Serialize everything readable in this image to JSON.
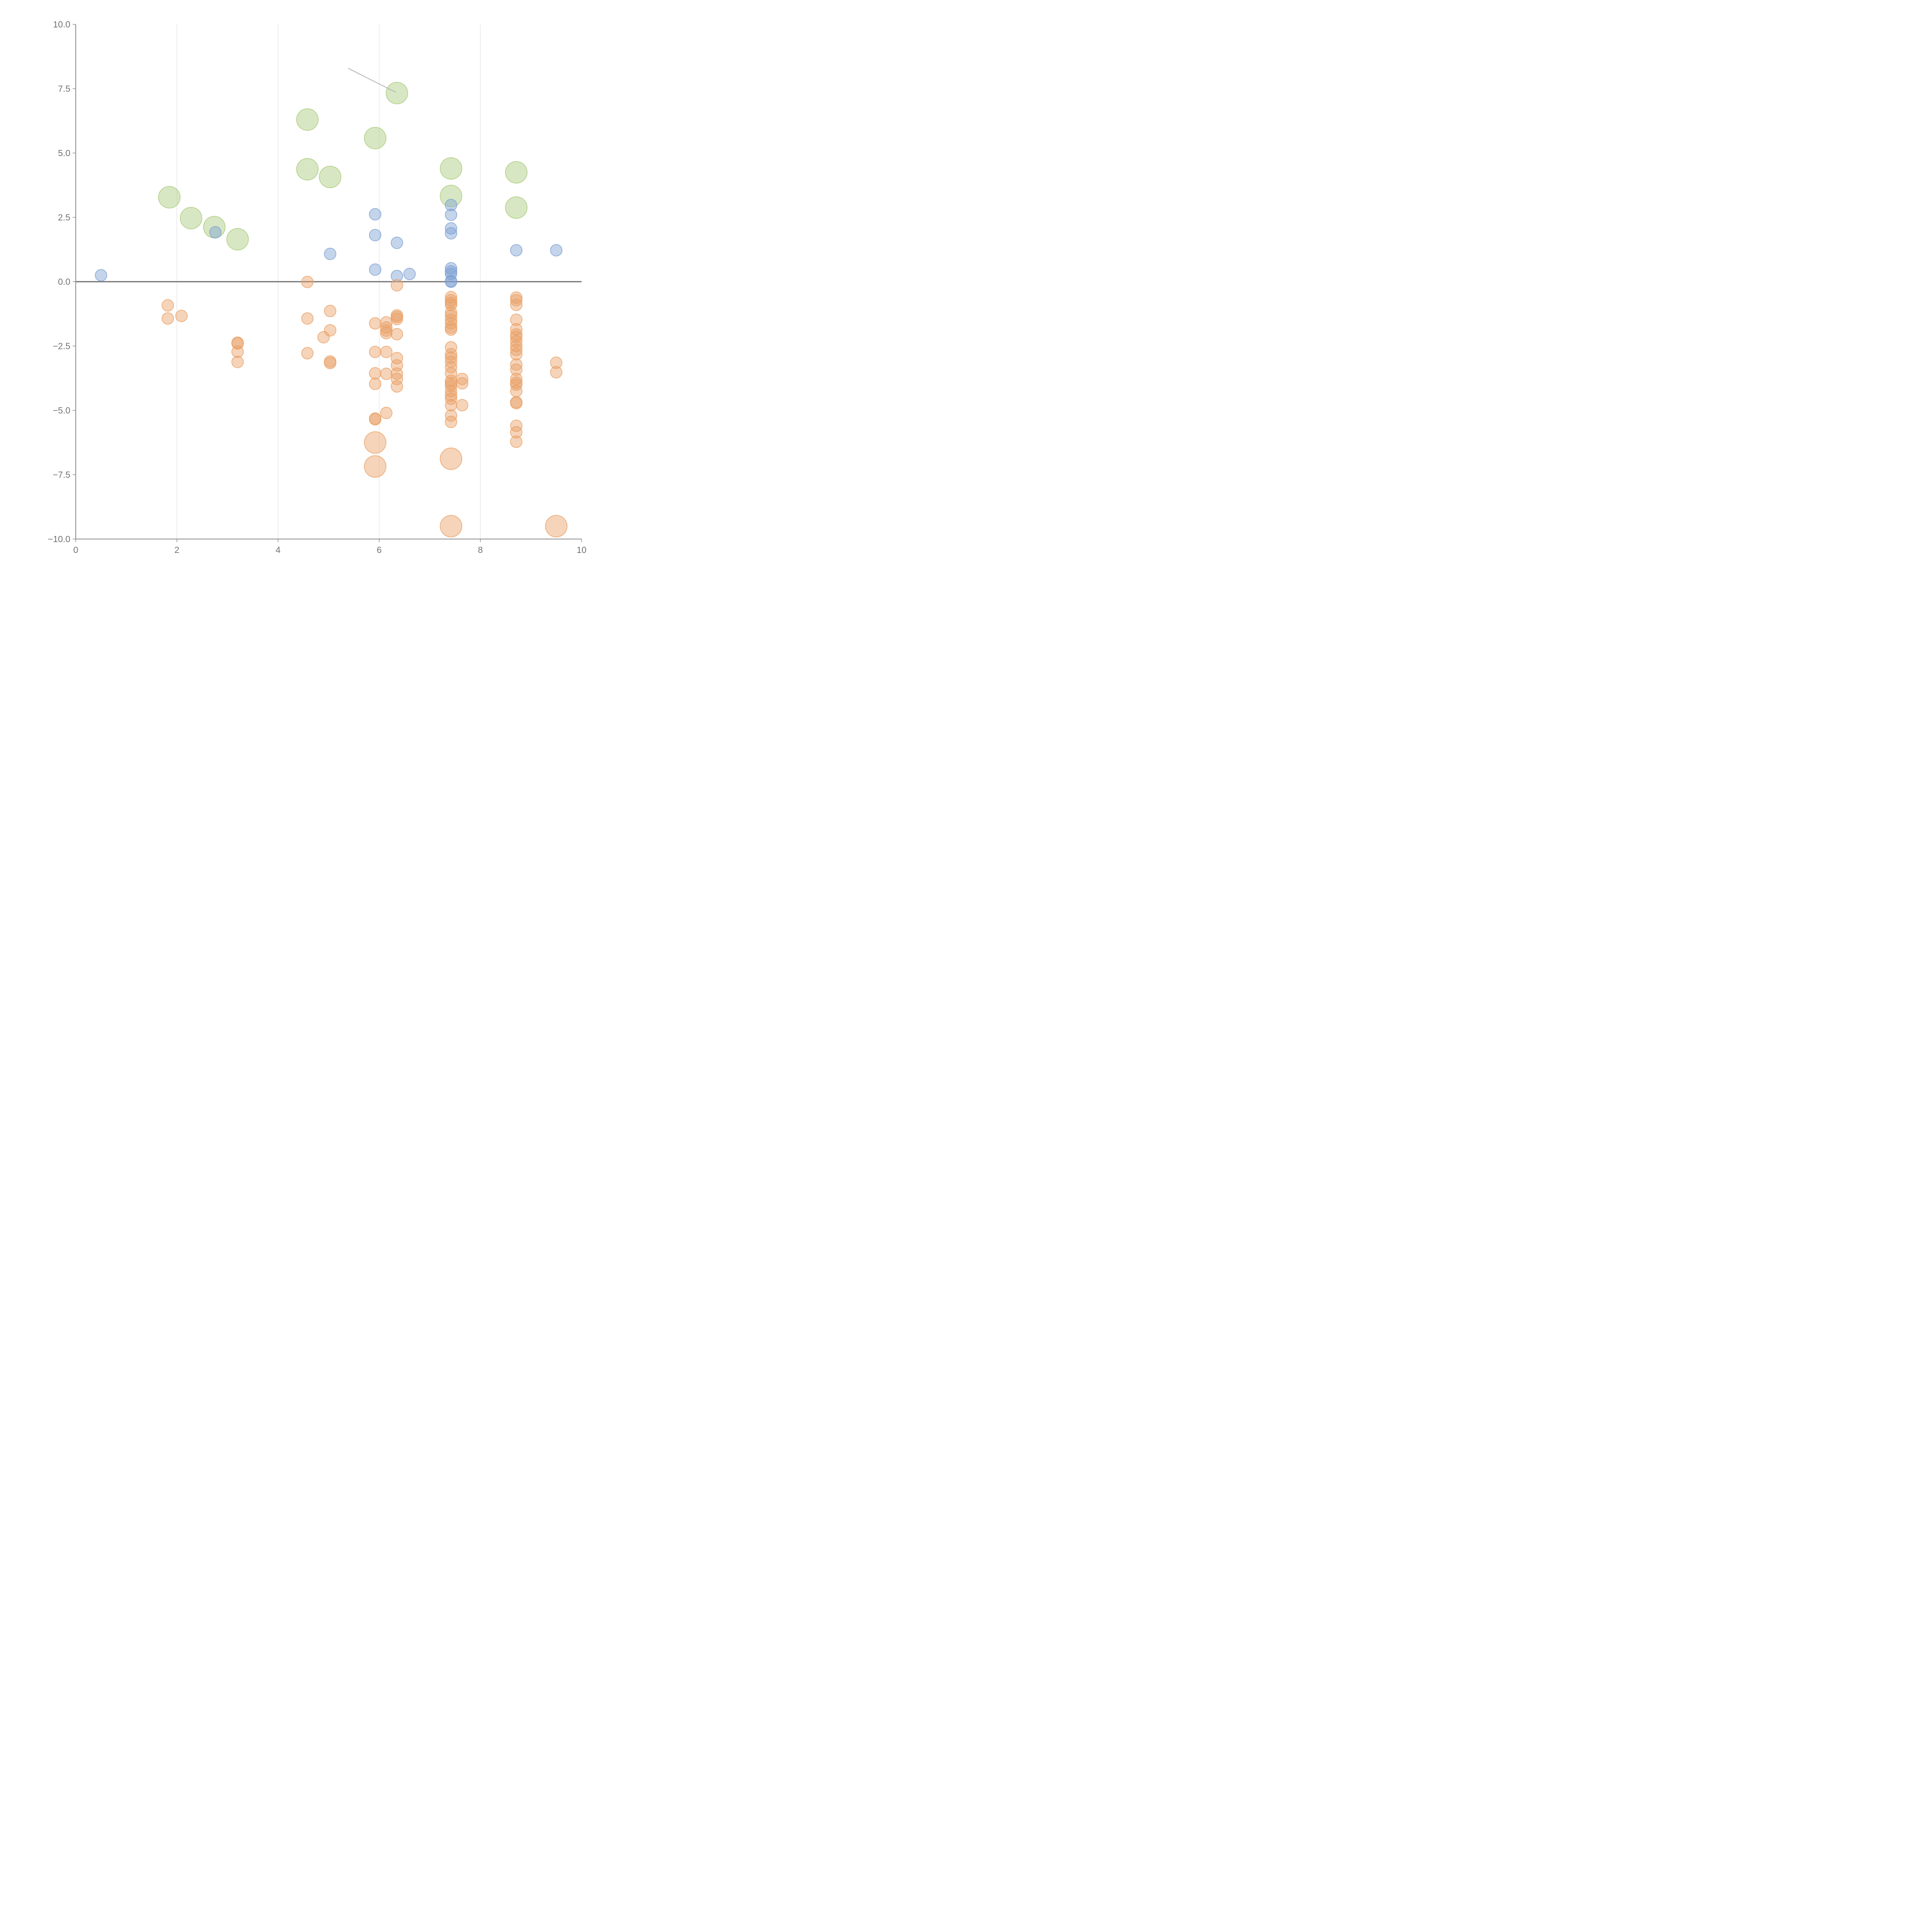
{
  "chart_data": {
    "type": "scatter",
    "title": "",
    "xlabel": "",
    "ylabel": "",
    "xlim": [
      0,
      10
    ],
    "ylim": [
      -10,
      10
    ],
    "x_ticks": [
      "0",
      "2",
      "4",
      "6",
      "8",
      "10"
    ],
    "y_ticks": [
      "10.0",
      "7.5",
      "5.0",
      "2.5",
      "0.0",
      "−2.5",
      "−5.0",
      "−7.5",
      "−10.0"
    ],
    "grid": "vertical",
    "zero_line": true,
    "legend": "none",
    "colors": {
      "green": "#a9c97a",
      "blue": "#7da0d2",
      "orange": "#e9a066"
    },
    "series": [
      {
        "color": "green",
        "size": "large",
        "points": [
          {
            "x": 1.85,
            "y": 3.28
          },
          {
            "x": 2.28,
            "y": 2.47
          },
          {
            "x": 2.74,
            "y": 2.12
          },
          {
            "x": 3.2,
            "y": 1.65
          },
          {
            "x": 4.58,
            "y": 6.3
          },
          {
            "x": 4.58,
            "y": 4.37
          },
          {
            "x": 5.03,
            "y": 4.07
          },
          {
            "x": 5.92,
            "y": 5.58
          },
          {
            "x": 6.35,
            "y": 7.33
          },
          {
            "x": 7.42,
            "y": 4.4
          },
          {
            "x": 7.42,
            "y": 3.33
          },
          {
            "x": 8.71,
            "y": 4.25
          },
          {
            "x": 8.71,
            "y": 2.88
          }
        ]
      },
      {
        "color": "blue",
        "size": "small",
        "points": [
          {
            "x": 0.5,
            "y": 0.25
          },
          {
            "x": 2.76,
            "y": 1.92
          },
          {
            "x": 5.03,
            "y": 1.08
          },
          {
            "x": 5.92,
            "y": 2.62
          },
          {
            "x": 5.92,
            "y": 1.81
          },
          {
            "x": 5.92,
            "y": 0.47
          },
          {
            "x": 6.35,
            "y": 1.51
          },
          {
            "x": 6.35,
            "y": 0.22
          },
          {
            "x": 6.6,
            "y": 0.3
          },
          {
            "x": 7.42,
            "y": 2.98
          },
          {
            "x": 7.42,
            "y": 2.6
          },
          {
            "x": 7.42,
            "y": 2.07
          },
          {
            "x": 7.42,
            "y": 1.88
          },
          {
            "x": 7.42,
            "y": 0.52
          },
          {
            "x": 7.42,
            "y": 0.4
          },
          {
            "x": 7.42,
            "y": 0.3
          },
          {
            "x": 7.42,
            "y": 0.02
          },
          {
            "x": 7.42,
            "y": 0.0
          },
          {
            "x": 8.71,
            "y": 1.22
          },
          {
            "x": 9.5,
            "y": 1.22
          }
        ]
      },
      {
        "color": "orange",
        "size": "small",
        "points": [
          {
            "x": 1.82,
            "y": -0.92
          },
          {
            "x": 1.82,
            "y": -1.43
          },
          {
            "x": 2.09,
            "y": -1.33
          },
          {
            "x": 3.2,
            "y": -2.37
          },
          {
            "x": 3.2,
            "y": -2.4
          },
          {
            "x": 3.2,
            "y": -2.72
          },
          {
            "x": 3.2,
            "y": -3.12
          },
          {
            "x": 4.58,
            "y": -0.01
          },
          {
            "x": 4.58,
            "y": -1.43
          },
          {
            "x": 4.58,
            "y": -2.78
          },
          {
            "x": 4.9,
            "y": -2.16
          },
          {
            "x": 5.03,
            "y": -1.14
          },
          {
            "x": 5.03,
            "y": -1.89
          },
          {
            "x": 5.03,
            "y": -3.1
          },
          {
            "x": 5.03,
            "y": -3.16
          },
          {
            "x": 5.92,
            "y": -1.62
          },
          {
            "x": 5.92,
            "y": -2.73
          },
          {
            "x": 5.92,
            "y": -3.56
          },
          {
            "x": 5.92,
            "y": -3.97
          },
          {
            "x": 5.92,
            "y": -5.32
          },
          {
            "x": 5.92,
            "y": -5.35
          },
          {
            "x": 6.14,
            "y": -1.58
          },
          {
            "x": 6.14,
            "y": -1.78
          },
          {
            "x": 6.14,
            "y": -1.9
          },
          {
            "x": 6.14,
            "y": -2.0
          },
          {
            "x": 6.14,
            "y": -2.73
          },
          {
            "x": 6.14,
            "y": -3.58
          },
          {
            "x": 6.14,
            "y": -5.1
          },
          {
            "x": 6.35,
            "y": -0.14
          },
          {
            "x": 6.35,
            "y": -1.31
          },
          {
            "x": 6.35,
            "y": -1.37
          },
          {
            "x": 6.35,
            "y": -1.45
          },
          {
            "x": 6.35,
            "y": -2.04
          },
          {
            "x": 6.35,
            "y": -2.97
          },
          {
            "x": 6.35,
            "y": -3.25
          },
          {
            "x": 6.35,
            "y": -3.57
          },
          {
            "x": 6.35,
            "y": -3.78
          },
          {
            "x": 6.35,
            "y": -4.07
          },
          {
            "x": 7.42,
            "y": -0.6
          },
          {
            "x": 7.42,
            "y": -0.72
          },
          {
            "x": 7.42,
            "y": -0.82
          },
          {
            "x": 7.42,
            "y": -0.9
          },
          {
            "x": 7.42,
            "y": -1.2
          },
          {
            "x": 7.42,
            "y": -1.32
          },
          {
            "x": 7.42,
            "y": -1.48
          },
          {
            "x": 7.42,
            "y": -1.62
          },
          {
            "x": 7.42,
            "y": -1.78
          },
          {
            "x": 7.42,
            "y": -1.86
          },
          {
            "x": 7.42,
            "y": -2.55
          },
          {
            "x": 7.42,
            "y": -2.82
          },
          {
            "x": 7.42,
            "y": -2.95
          },
          {
            "x": 7.42,
            "y": -3.12
          },
          {
            "x": 7.42,
            "y": -3.32
          },
          {
            "x": 7.42,
            "y": -3.56
          },
          {
            "x": 7.42,
            "y": -3.85
          },
          {
            "x": 7.42,
            "y": -3.95
          },
          {
            "x": 7.42,
            "y": -4.05
          },
          {
            "x": 7.42,
            "y": -4.25
          },
          {
            "x": 7.42,
            "y": -4.42
          },
          {
            "x": 7.42,
            "y": -4.55
          },
          {
            "x": 7.42,
            "y": -4.8
          },
          {
            "x": 7.42,
            "y": -5.2
          },
          {
            "x": 7.42,
            "y": -5.45
          },
          {
            "x": 7.64,
            "y": -3.78
          },
          {
            "x": 7.64,
            "y": -3.95
          },
          {
            "x": 7.64,
            "y": -4.8
          },
          {
            "x": 8.71,
            "y": -0.62
          },
          {
            "x": 8.71,
            "y": -0.72
          },
          {
            "x": 8.71,
            "y": -0.9
          },
          {
            "x": 8.71,
            "y": -1.48
          },
          {
            "x": 8.71,
            "y": -1.85
          },
          {
            "x": 8.71,
            "y": -2.05
          },
          {
            "x": 8.71,
            "y": -2.15
          },
          {
            "x": 8.71,
            "y": -2.32
          },
          {
            "x": 8.71,
            "y": -2.5
          },
          {
            "x": 8.71,
            "y": -2.65
          },
          {
            "x": 8.71,
            "y": -2.82
          },
          {
            "x": 8.71,
            "y": -3.22
          },
          {
            "x": 8.71,
            "y": -3.42
          },
          {
            "x": 8.71,
            "y": -3.78
          },
          {
            "x": 8.71,
            "y": -3.92
          },
          {
            "x": 8.71,
            "y": -4.0
          },
          {
            "x": 8.71,
            "y": -4.25
          },
          {
            "x": 8.71,
            "y": -4.68
          },
          {
            "x": 8.71,
            "y": -4.72
          },
          {
            "x": 8.71,
            "y": -5.6
          },
          {
            "x": 8.71,
            "y": -5.85
          },
          {
            "x": 8.71,
            "y": -6.22
          },
          {
            "x": 9.5,
            "y": -3.15
          },
          {
            "x": 9.5,
            "y": -3.52
          }
        ]
      },
      {
        "color": "orange",
        "size": "large",
        "points": [
          {
            "x": 5.92,
            "y": -6.25
          },
          {
            "x": 5.92,
            "y": -7.18
          },
          {
            "x": 7.42,
            "y": -6.88
          },
          {
            "x": 7.42,
            "y": -9.5
          },
          {
            "x": 9.5,
            "y": -9.5
          }
        ]
      }
    ]
  }
}
